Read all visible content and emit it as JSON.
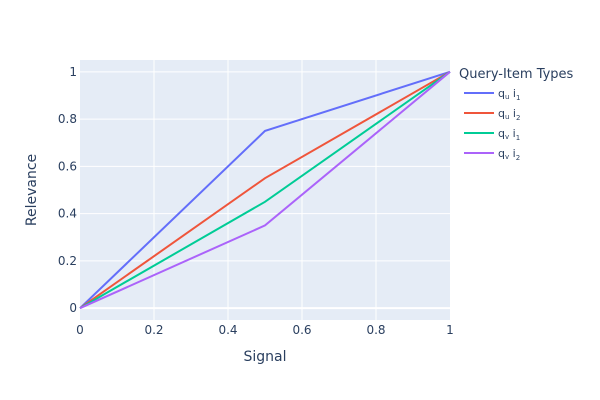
{
  "chart_data": {
    "type": "line",
    "xlabel": "Signal",
    "ylabel": "Relevance",
    "xlim": [
      0,
      1
    ],
    "ylim": [
      -0.05,
      1.05
    ],
    "x_ticks": [
      0,
      0.2,
      0.4,
      0.6,
      0.8,
      1
    ],
    "x_tick_labels": [
      "0",
      "0.2",
      "0.4",
      "0.6",
      "0.8",
      "1"
    ],
    "y_ticks": [
      0,
      0.2,
      0.4,
      0.6,
      0.8,
      1
    ],
    "y_tick_labels": [
      "0",
      "0.2",
      "0.4",
      "0.6",
      "0.8",
      "1"
    ],
    "grid": true,
    "legend_title": "Query-Item Types",
    "legend_position": "top-right outside",
    "background": "#e5ecf6",
    "series": [
      {
        "name": "qu i1",
        "label_main": "q",
        "label_sub1": "u",
        "label_mid": " i",
        "label_sub2": "1",
        "color": "#636efa",
        "x": [
          0,
          0.5,
          1
        ],
        "y": [
          0,
          0.75,
          1
        ]
      },
      {
        "name": "qu i2",
        "label_main": "q",
        "label_sub1": "u",
        "label_mid": " i",
        "label_sub2": "2",
        "color": "#ef553b",
        "x": [
          0,
          0.5,
          1
        ],
        "y": [
          0,
          0.55,
          1
        ]
      },
      {
        "name": "qv i1",
        "label_main": "q",
        "label_sub1": "v",
        "label_mid": " i",
        "label_sub2": "1",
        "color": "#00cc96",
        "x": [
          0,
          0.5,
          1
        ],
        "y": [
          0,
          0.45,
          1
        ]
      },
      {
        "name": "qv i2",
        "label_main": "q",
        "label_sub1": "v",
        "label_mid": " i",
        "label_sub2": "2",
        "color": "#ab63fa",
        "x": [
          0,
          0.5,
          1
        ],
        "y": [
          0,
          0.35,
          1
        ]
      }
    ]
  }
}
